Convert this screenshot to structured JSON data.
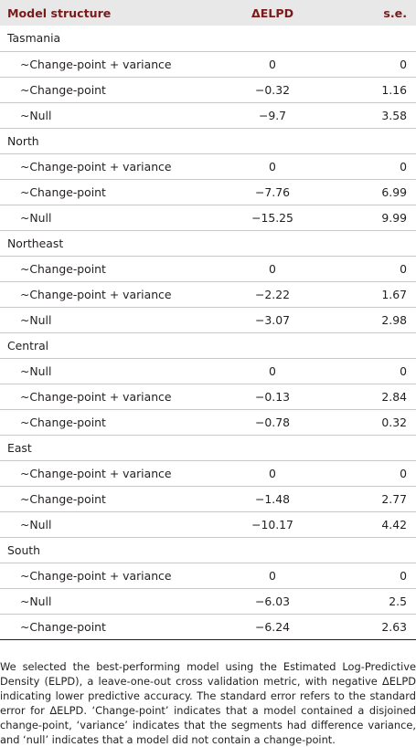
{
  "header": {
    "model_structure": "Model structure",
    "delta_elpd": "ΔELPD",
    "se": "s.e."
  },
  "groups": [
    {
      "region": "Tasmania",
      "rows": [
        {
          "model": "~Change-point + variance",
          "delta": "0",
          "se": "0"
        },
        {
          "model": "~Change-point",
          "delta": "−0.32",
          "se": "1.16"
        },
        {
          "model": "~Null",
          "delta": "−9.7",
          "se": "3.58"
        }
      ]
    },
    {
      "region": "North",
      "rows": [
        {
          "model": "~Change-point + variance",
          "delta": "0",
          "se": "0"
        },
        {
          "model": "~Change-point",
          "delta": "−7.76",
          "se": "6.99"
        },
        {
          "model": "~Null",
          "delta": "−15.25",
          "se": "9.99"
        }
      ]
    },
    {
      "region": "Northeast",
      "rows": [
        {
          "model": "~Change-point",
          "delta": "0",
          "se": "0"
        },
        {
          "model": "~Change-point + variance",
          "delta": "−2.22",
          "se": "1.67"
        },
        {
          "model": "~Null",
          "delta": "−3.07",
          "se": "2.98"
        }
      ]
    },
    {
      "region": "Central",
      "rows": [
        {
          "model": "~Null",
          "delta": "0",
          "se": "0"
        },
        {
          "model": "~Change-point + variance",
          "delta": "−0.13",
          "se": "2.84"
        },
        {
          "model": "~Change-point",
          "delta": "−0.78",
          "se": "0.32"
        }
      ]
    },
    {
      "region": "East",
      "rows": [
        {
          "model": "~Change-point + variance",
          "delta": "0",
          "se": "0"
        },
        {
          "model": "~Change-point",
          "delta": "−1.48",
          "se": "2.77"
        },
        {
          "model": "~Null",
          "delta": "−10.17",
          "se": "4.42"
        }
      ]
    },
    {
      "region": "South",
      "rows": [
        {
          "model": "~Change-point + variance",
          "delta": "0",
          "se": "0"
        },
        {
          "model": "~Null",
          "delta": "−6.03",
          "se": "2.5"
        },
        {
          "model": "~Change-point",
          "delta": "−6.24",
          "se": "2.63"
        }
      ]
    }
  ],
  "footnote": "We selected the best-performing model using the Estimated Log-Predictive Density (ELPD), a leave-one-out cross validation metric, with negative ΔELPD indicating lower predictive accuracy. The standard error refers to the standard error for ΔELPD. ‘Change-point’ indicates that a model contained a disjoined change-point, ‘variance’ indicates that the segments had difference variance, and ‘null’ indicates that a model did not contain a change-point."
}
